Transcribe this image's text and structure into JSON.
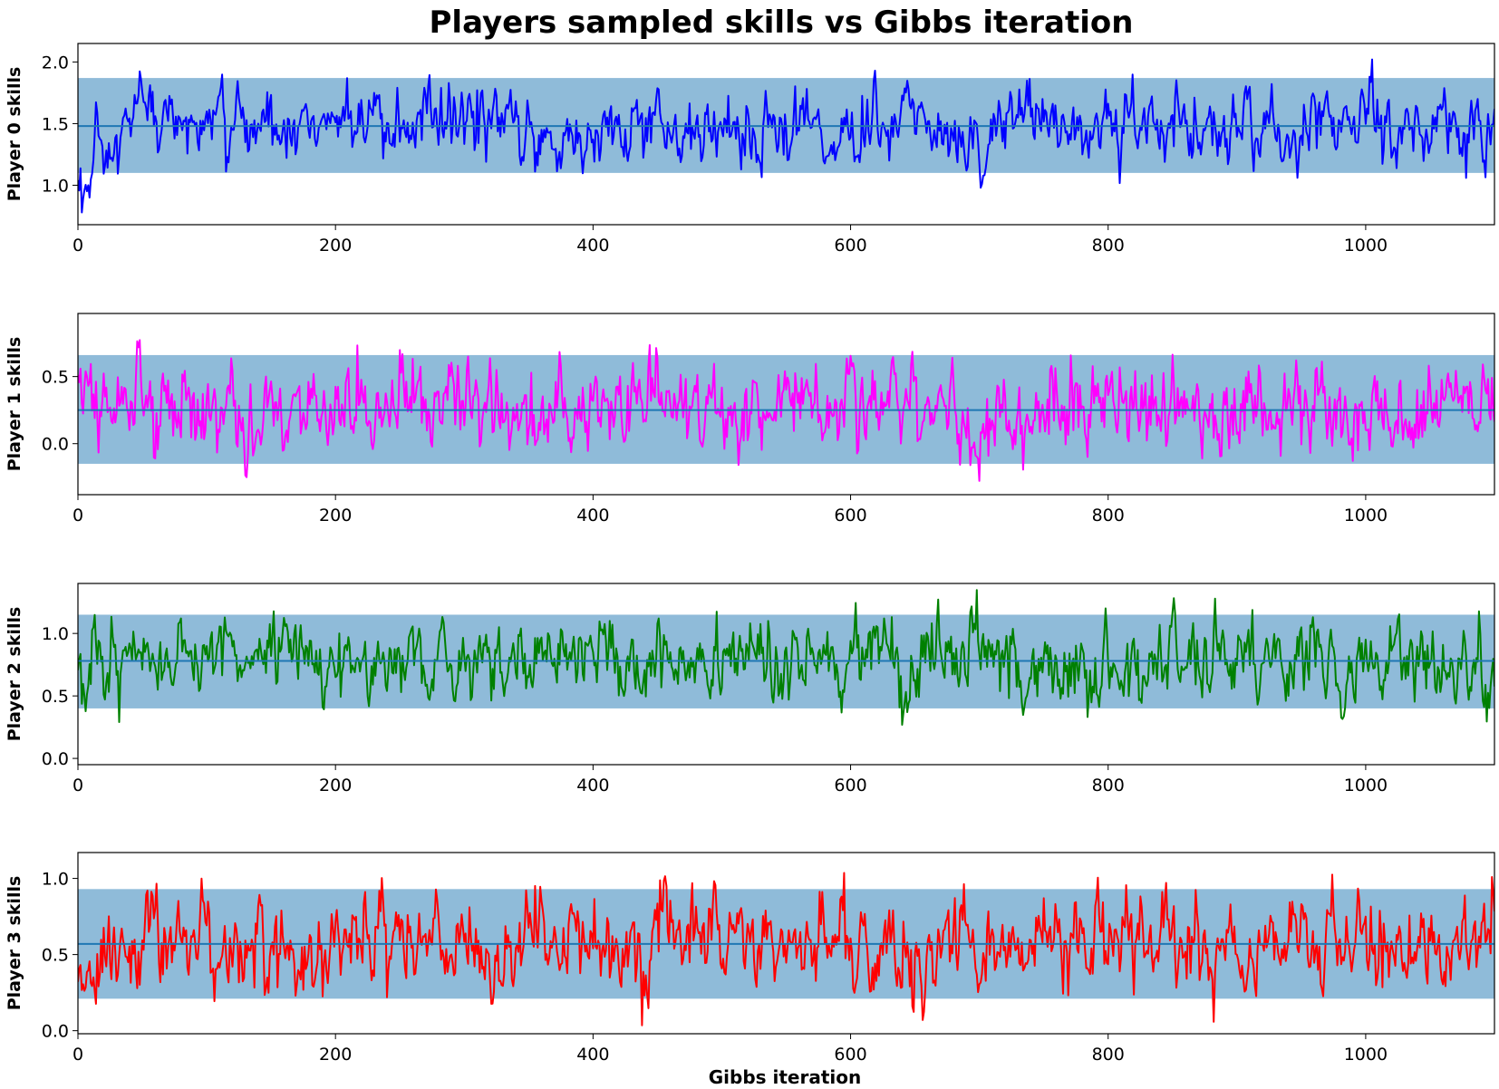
{
  "figure": {
    "title": "Players sampled skills vs Gibbs iteration",
    "xlabel": "Gibbs iteration"
  },
  "chart_data": [
    {
      "type": "line",
      "ylabel": "Player 0 skills",
      "color": "#0000ff",
      "band_color": "#1f77b4",
      "mean": 1.48,
      "band": [
        1.1,
        1.87
      ],
      "xlim": [
        0,
        1100
      ],
      "ylim": [
        0.68,
        2.15
      ],
      "xticks": [
        0,
        200,
        400,
        600,
        800,
        1000
      ],
      "yticks": [
        1.0,
        1.5,
        2.0
      ],
      "ytick_labels": [
        "1.0",
        "1.5",
        "2.0"
      ],
      "series": [
        {
          "x": [
            0,
            50,
            100,
            150,
            200,
            250,
            300,
            350,
            400,
            450,
            500,
            550,
            600,
            650,
            700,
            750,
            800,
            850,
            900,
            950,
            1000,
            1050,
            1100
          ],
          "values": [
            0.85,
            1.6,
            1.45,
            1.5,
            1.55,
            1.4,
            1.55,
            1.45,
            1.35,
            1.5,
            1.45,
            1.5,
            1.4,
            1.5,
            1.45,
            1.55,
            1.45,
            1.5,
            1.4,
            1.45,
            1.55,
            1.45,
            1.5
          ],
          "amplitude": 0.22
        }
      ]
    },
    {
      "type": "line",
      "ylabel": "Player 1 skills",
      "color": "#ff00ff",
      "band_color": "#1f77b4",
      "mean": 0.25,
      "band": [
        -0.15,
        0.66
      ],
      "xlim": [
        0,
        1100
      ],
      "ylim": [
        -0.38,
        0.97
      ],
      "xticks": [
        0,
        200,
        400,
        600,
        800,
        1000
      ],
      "yticks": [
        0.0,
        0.5
      ],
      "ytick_labels": [
        "0.0",
        "0.5"
      ],
      "series": [
        {
          "x": [
            0,
            50,
            100,
            150,
            200,
            250,
            300,
            350,
            400,
            450,
            500,
            550,
            600,
            650,
            700,
            750,
            800,
            850,
            900,
            950,
            1000,
            1050,
            1100
          ],
          "values": [
            0.3,
            0.25,
            0.2,
            0.25,
            0.3,
            0.25,
            0.3,
            0.2,
            0.25,
            0.3,
            0.25,
            0.2,
            0.3,
            0.25,
            0.2,
            0.3,
            0.25,
            0.2,
            0.25,
            0.3,
            0.2,
            0.25,
            0.3
          ],
          "amplitude": 0.24
        }
      ]
    },
    {
      "type": "line",
      "ylabel": "Player 2 skills",
      "color": "#008000",
      "band_color": "#1f77b4",
      "mean": 0.78,
      "band": [
        0.4,
        1.15
      ],
      "xlim": [
        0,
        1100
      ],
      "ylim": [
        -0.05,
        1.4
      ],
      "xticks": [
        0,
        200,
        400,
        600,
        800,
        1000
      ],
      "yticks": [
        0.0,
        0.5,
        1.0
      ],
      "ytick_labels": [
        "0.0",
        "0.5",
        "1.0"
      ],
      "series": [
        {
          "x": [
            0,
            50,
            100,
            150,
            200,
            250,
            300,
            350,
            400,
            450,
            500,
            550,
            600,
            650,
            700,
            750,
            800,
            850,
            900,
            950,
            1000,
            1050,
            1100
          ],
          "values": [
            0.6,
            0.8,
            0.85,
            0.8,
            0.75,
            0.8,
            0.85,
            0.75,
            0.8,
            0.75,
            0.7,
            0.8,
            0.8,
            0.75,
            0.8,
            0.75,
            0.7,
            0.8,
            0.75,
            0.8,
            0.75,
            0.8,
            0.55
          ],
          "amplitude": 0.23
        }
      ]
    },
    {
      "type": "line",
      "ylabel": "Player 3 skills",
      "color": "#ff0000",
      "band_color": "#1f77b4",
      "mean": 0.57,
      "band": [
        0.21,
        0.93
      ],
      "xlim": [
        0,
        1100
      ],
      "ylim": [
        -0.02,
        1.17
      ],
      "xticks": [
        0,
        200,
        400,
        600,
        800,
        1000
      ],
      "yticks": [
        0.0,
        0.5,
        1.0
      ],
      "ytick_labels": [
        "0.0",
        "0.5",
        "1.0"
      ],
      "series": [
        {
          "x": [
            0,
            50,
            100,
            150,
            200,
            250,
            300,
            350,
            400,
            450,
            500,
            550,
            600,
            650,
            700,
            750,
            800,
            850,
            900,
            950,
            1000,
            1050,
            1100
          ],
          "values": [
            0.35,
            0.6,
            0.55,
            0.6,
            0.55,
            0.6,
            0.55,
            0.6,
            0.55,
            0.6,
            0.65,
            0.55,
            0.6,
            0.55,
            0.5,
            0.6,
            0.55,
            0.6,
            0.55,
            0.6,
            0.55,
            0.6,
            0.6
          ],
          "amplitude": 0.22
        }
      ]
    }
  ]
}
